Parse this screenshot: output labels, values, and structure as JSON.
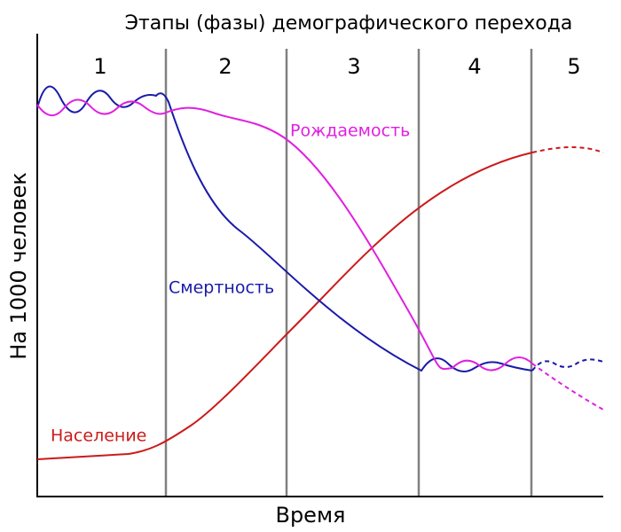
{
  "title": "Этапы (фазы) демографического перехода",
  "phases": [
    "1",
    "2",
    "3",
    "4",
    "5"
  ],
  "curves": {
    "birth": "Рождаемость",
    "death": "Смертность",
    "population": "Население"
  },
  "axes": {
    "x": "Время",
    "y": "На 1000 человек"
  }
}
